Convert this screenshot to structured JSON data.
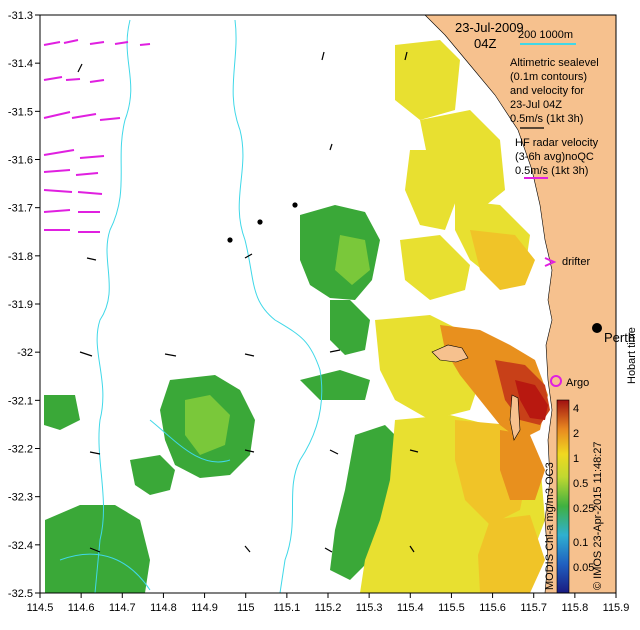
{
  "map": {
    "date": "23-Jul-2009",
    "time": "04Z",
    "scale_label": "200  1000m",
    "altimetry_legend": [
      "Altimetric sealevel",
      "(0.1m contours)",
      "and velocity for",
      "23-Jul 04Z",
      "0.5m/s (1kt 3h)"
    ],
    "hf_legend": [
      "HF radar velocity",
      "(3-6h avg)noQC",
      "0.5m/s (1kt 3h)"
    ],
    "drifter_label": "drifter",
    "argo_label": "Argo",
    "city_label": "Perth",
    "hobart_time": "Hobart time",
    "credit": "© IMOS 23-Apr-2015 11:48:27",
    "colorbar_title": "MODIS Chl-a mg/m3 OC3",
    "colorbar_ticks": [
      "4",
      "2",
      "1",
      "0.5",
      "0.25",
      "0.1",
      "0.05"
    ],
    "x_ticks": [
      "114.5",
      "114.6",
      "114.7",
      "114.8",
      "114.9",
      "115",
      "115.1",
      "115.2",
      "115.3",
      "115.4",
      "115.5",
      "115.6",
      "115.7",
      "115.8",
      "115.9"
    ],
    "y_ticks": [
      "-31.3",
      "-31.4",
      "-31.5",
      "-31.6",
      "-31.7",
      "-31.8",
      "-31.9",
      "-32",
      "-32.1",
      "-32.2",
      "-32.3",
      "-32.4",
      "-32.5"
    ],
    "colors": {
      "land": "#f6c18e",
      "bathymetry": "#40d8e8",
      "hf_arrow": "#e020e0",
      "chl_green": "#3aa838",
      "chl_yellow": "#e8e030",
      "chl_orange": "#e8901e",
      "chl_red": "#b81810"
    }
  }
}
